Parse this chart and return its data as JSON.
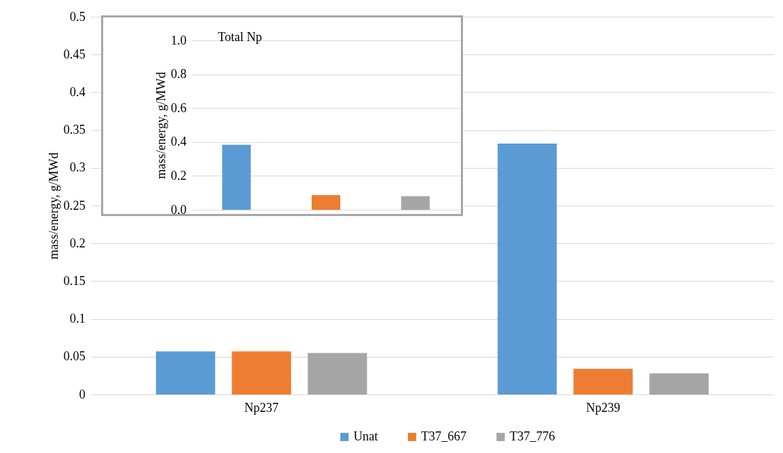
{
  "chart_data": [
    {
      "type": "bar",
      "categories": [
        "Np237",
        "Np239"
      ],
      "ylabel": "mass/energy, g/MWd",
      "ylim": [
        0,
        0.5
      ],
      "yticks": [
        0,
        0.05,
        0.1,
        0.15,
        0.2,
        0.25,
        0.3,
        0.35,
        0.4,
        0.45,
        0.5
      ],
      "grid": "y",
      "legend": "bottom",
      "series": [
        {
          "name": "Unat",
          "color": "#5b9bd5",
          "values": [
            0.057,
            0.332
          ]
        },
        {
          "name": "T37_667",
          "color": "#ed7d31",
          "values": [
            0.057,
            0.034
          ]
        },
        {
          "name": "T37_776",
          "color": "#a5a5a5",
          "values": [
            0.055,
            0.028
          ]
        }
      ]
    },
    {
      "type": "bar",
      "title": "Total Np",
      "categories": [
        null,
        null,
        null
      ],
      "values": [
        0.384,
        0.086,
        0.08
      ],
      "colors": [
        "#5b9bd5",
        "#ed7d31",
        "#a5a5a5"
      ],
      "ylabel": "mass/energy, g/MWd",
      "ylim": [
        0,
        1.0
      ],
      "yticks": [
        {
          "value": 0,
          "label": "0.0"
        },
        0.2,
        0.4,
        0.6,
        0.8,
        {
          "value": 1,
          "label": "1.0"
        }
      ],
      "grid": "y",
      "tick_labels": "y"
    }
  ]
}
